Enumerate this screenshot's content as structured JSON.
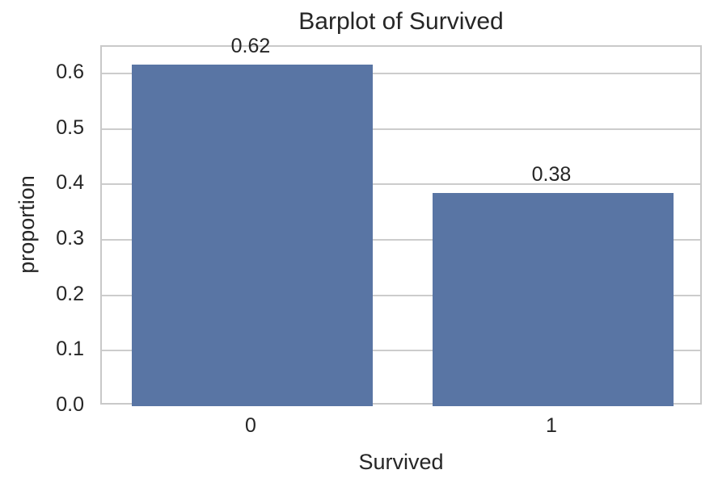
{
  "chart_data": {
    "type": "bar",
    "title": "Barplot of Survived",
    "xlabel": "Survived",
    "ylabel": "proportion",
    "categories": [
      "0",
      "1"
    ],
    "values": [
      0.616,
      0.384
    ],
    "bar_value_labels": [
      "0.62",
      "0.38"
    ],
    "ytick_values": [
      0.0,
      0.1,
      0.2,
      0.3,
      0.4,
      0.5,
      0.6
    ],
    "ytick_labels": [
      "0.0",
      "0.1",
      "0.2",
      "0.3",
      "0.4",
      "0.5",
      "0.6"
    ],
    "ylim": [
      0,
      0.648
    ],
    "grid": "horizontal",
    "legend": null,
    "colors": {
      "bar": "#5975a4",
      "grid": "#cccccc",
      "spine": "#c9c9c9",
      "text": "#262626",
      "background": "#ffffff"
    }
  }
}
